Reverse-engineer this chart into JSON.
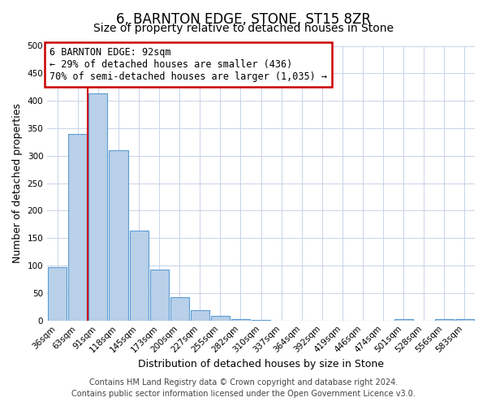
{
  "title": "6, BARNTON EDGE, STONE, ST15 8ZR",
  "subtitle": "Size of property relative to detached houses in Stone",
  "xlabel": "Distribution of detached houses by size in Stone",
  "ylabel": "Number of detached properties",
  "footer_line1": "Contains HM Land Registry data © Crown copyright and database right 2024.",
  "footer_line2": "Contains public sector information licensed under the Open Government Licence v3.0.",
  "bin_labels": [
    "36sqm",
    "63sqm",
    "91sqm",
    "118sqm",
    "145sqm",
    "173sqm",
    "200sqm",
    "227sqm",
    "255sqm",
    "282sqm",
    "310sqm",
    "337sqm",
    "364sqm",
    "392sqm",
    "419sqm",
    "446sqm",
    "474sqm",
    "501sqm",
    "528sqm",
    "556sqm",
    "583sqm"
  ],
  "bar_values": [
    97,
    340,
    413,
    310,
    163,
    93,
    42,
    19,
    8,
    3,
    1,
    0,
    0,
    0,
    0,
    0,
    0,
    2,
    0,
    2,
    2
  ],
  "bar_color": "#b8d0e8",
  "bar_edge_color": "#5b9bd5",
  "annotation_line1": "6 BARNTON EDGE: 92sqm",
  "annotation_line2": "← 29% of detached houses are smaller (436)",
  "annotation_line3": "70% of semi-detached houses are larger (1,035) →",
  "annotation_box_edge_color": "#cc0000",
  "annotation_box_facecolor": "#ffffff",
  "marker_line_color": "#cc0000",
  "ylim": [
    0,
    500
  ],
  "background_color": "#ffffff",
  "grid_color": "#c8d4e8",
  "title_fontsize": 12,
  "subtitle_fontsize": 10,
  "axis_label_fontsize": 9,
  "tick_fontsize": 7.5,
  "annotation_fontsize": 8.5,
  "footer_fontsize": 7
}
